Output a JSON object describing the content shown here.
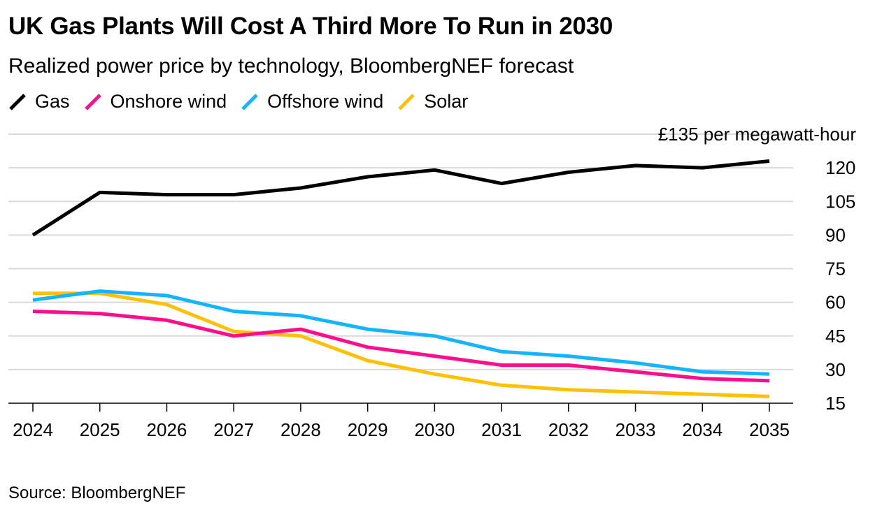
{
  "title": "UK Gas Plants Will Cost A Third More To Run in 2030",
  "subtitle": "Realized power price by technology, BloombergNEF forecast",
  "source": "Source: BloombergNEF",
  "chart_data": {
    "type": "line",
    "x": [
      2024,
      2025,
      2026,
      2027,
      2028,
      2029,
      2030,
      2031,
      2032,
      2033,
      2034,
      2035
    ],
    "x_tick_labels": [
      "2024",
      "2025",
      "2026",
      "2027",
      "2028",
      "2029",
      "2030",
      "2031",
      "2032",
      "2033",
      "2034",
      "2035"
    ],
    "y_ticks": [
      15,
      30,
      45,
      60,
      75,
      90,
      105,
      120,
      135
    ],
    "y_tick_labels": [
      "15",
      "30",
      "45",
      "60",
      "75",
      "90",
      "105",
      "120",
      "£135 per megawatt-hour"
    ],
    "ylim": [
      15,
      135
    ],
    "grid": true,
    "legend_position": "top-left",
    "series": [
      {
        "name": "Gas",
        "color": "#000000",
        "values": [
          90,
          109,
          108,
          108,
          111,
          116,
          119,
          113,
          118,
          121,
          120,
          123
        ]
      },
      {
        "name": "Onshore wind",
        "color": "#ff0e8c",
        "values": [
          56,
          55,
          52,
          45,
          48,
          40,
          36,
          32,
          32,
          29,
          26,
          25
        ]
      },
      {
        "name": "Offshore wind",
        "color": "#15b4ff",
        "values": [
          61,
          65,
          63,
          56,
          54,
          48,
          45,
          38,
          36,
          33,
          29,
          28
        ]
      },
      {
        "name": "Solar",
        "color": "#ffc107",
        "values": [
          64,
          64,
          59,
          47,
          45,
          34,
          28,
          23,
          21,
          20,
          19,
          18
        ]
      }
    ]
  }
}
